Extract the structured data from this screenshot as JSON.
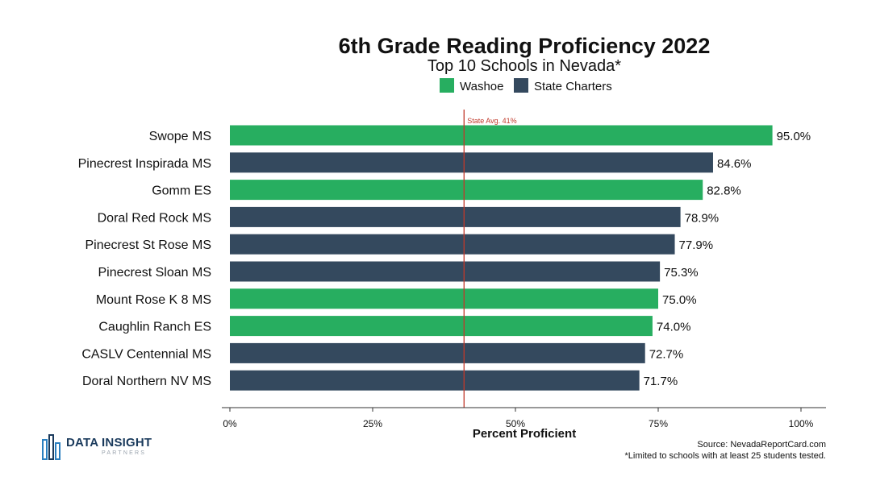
{
  "chart_data": {
    "type": "bar",
    "orientation": "horizontal",
    "title": "6th Grade Reading Proficiency 2022",
    "subtitle": "Top 10 Schools in Nevada*",
    "xlabel": "Percent Proficient",
    "xlim": [
      0,
      100
    ],
    "x_ticks": [
      0,
      25,
      50,
      75,
      100
    ],
    "x_tick_labels": [
      "0%",
      "25%",
      "50%",
      "75%",
      "100%"
    ],
    "legend_position": "top",
    "legend": [
      {
        "name": "Washoe",
        "color": "#27ae60"
      },
      {
        "name": "State Charters",
        "color": "#34495e"
      }
    ],
    "reference_line": {
      "value": 41,
      "label": "State Avg. 41%",
      "color": "#c0392b"
    },
    "bars": [
      {
        "category": "Swope MS",
        "value": 95.0,
        "label": "95.0%",
        "group": "Washoe"
      },
      {
        "category": "Pinecrest Inspirada MS",
        "value": 84.6,
        "label": "84.6%",
        "group": "State Charters"
      },
      {
        "category": "Gomm ES",
        "value": 82.8,
        "label": "82.8%",
        "group": "Washoe"
      },
      {
        "category": "Doral Red Rock MS",
        "value": 78.9,
        "label": "78.9%",
        "group": "State Charters"
      },
      {
        "category": "Pinecrest St Rose MS",
        "value": 77.9,
        "label": "77.9%",
        "group": "State Charters"
      },
      {
        "category": "Pinecrest Sloan MS",
        "value": 75.3,
        "label": "75.3%",
        "group": "State Charters"
      },
      {
        "category": "Mount Rose K 8 MS",
        "value": 75.0,
        "label": "75.0%",
        "group": "Washoe"
      },
      {
        "category": "Caughlin Ranch ES",
        "value": 74.0,
        "label": "74.0%",
        "group": "Washoe"
      },
      {
        "category": "CASLV Centennial MS",
        "value": 72.7,
        "label": "72.7%",
        "group": "State Charters"
      },
      {
        "category": "Doral Northern NV MS",
        "value": 71.7,
        "label": "71.7%",
        "group": "State Charters"
      }
    ],
    "grid": false
  },
  "footer": {
    "logo_main": "DATA INSIGHT",
    "logo_sub": "PARTNERS",
    "source": "Source: NevadaReportCard.com",
    "note": "*Limited to schools with at least 25 students tested."
  }
}
